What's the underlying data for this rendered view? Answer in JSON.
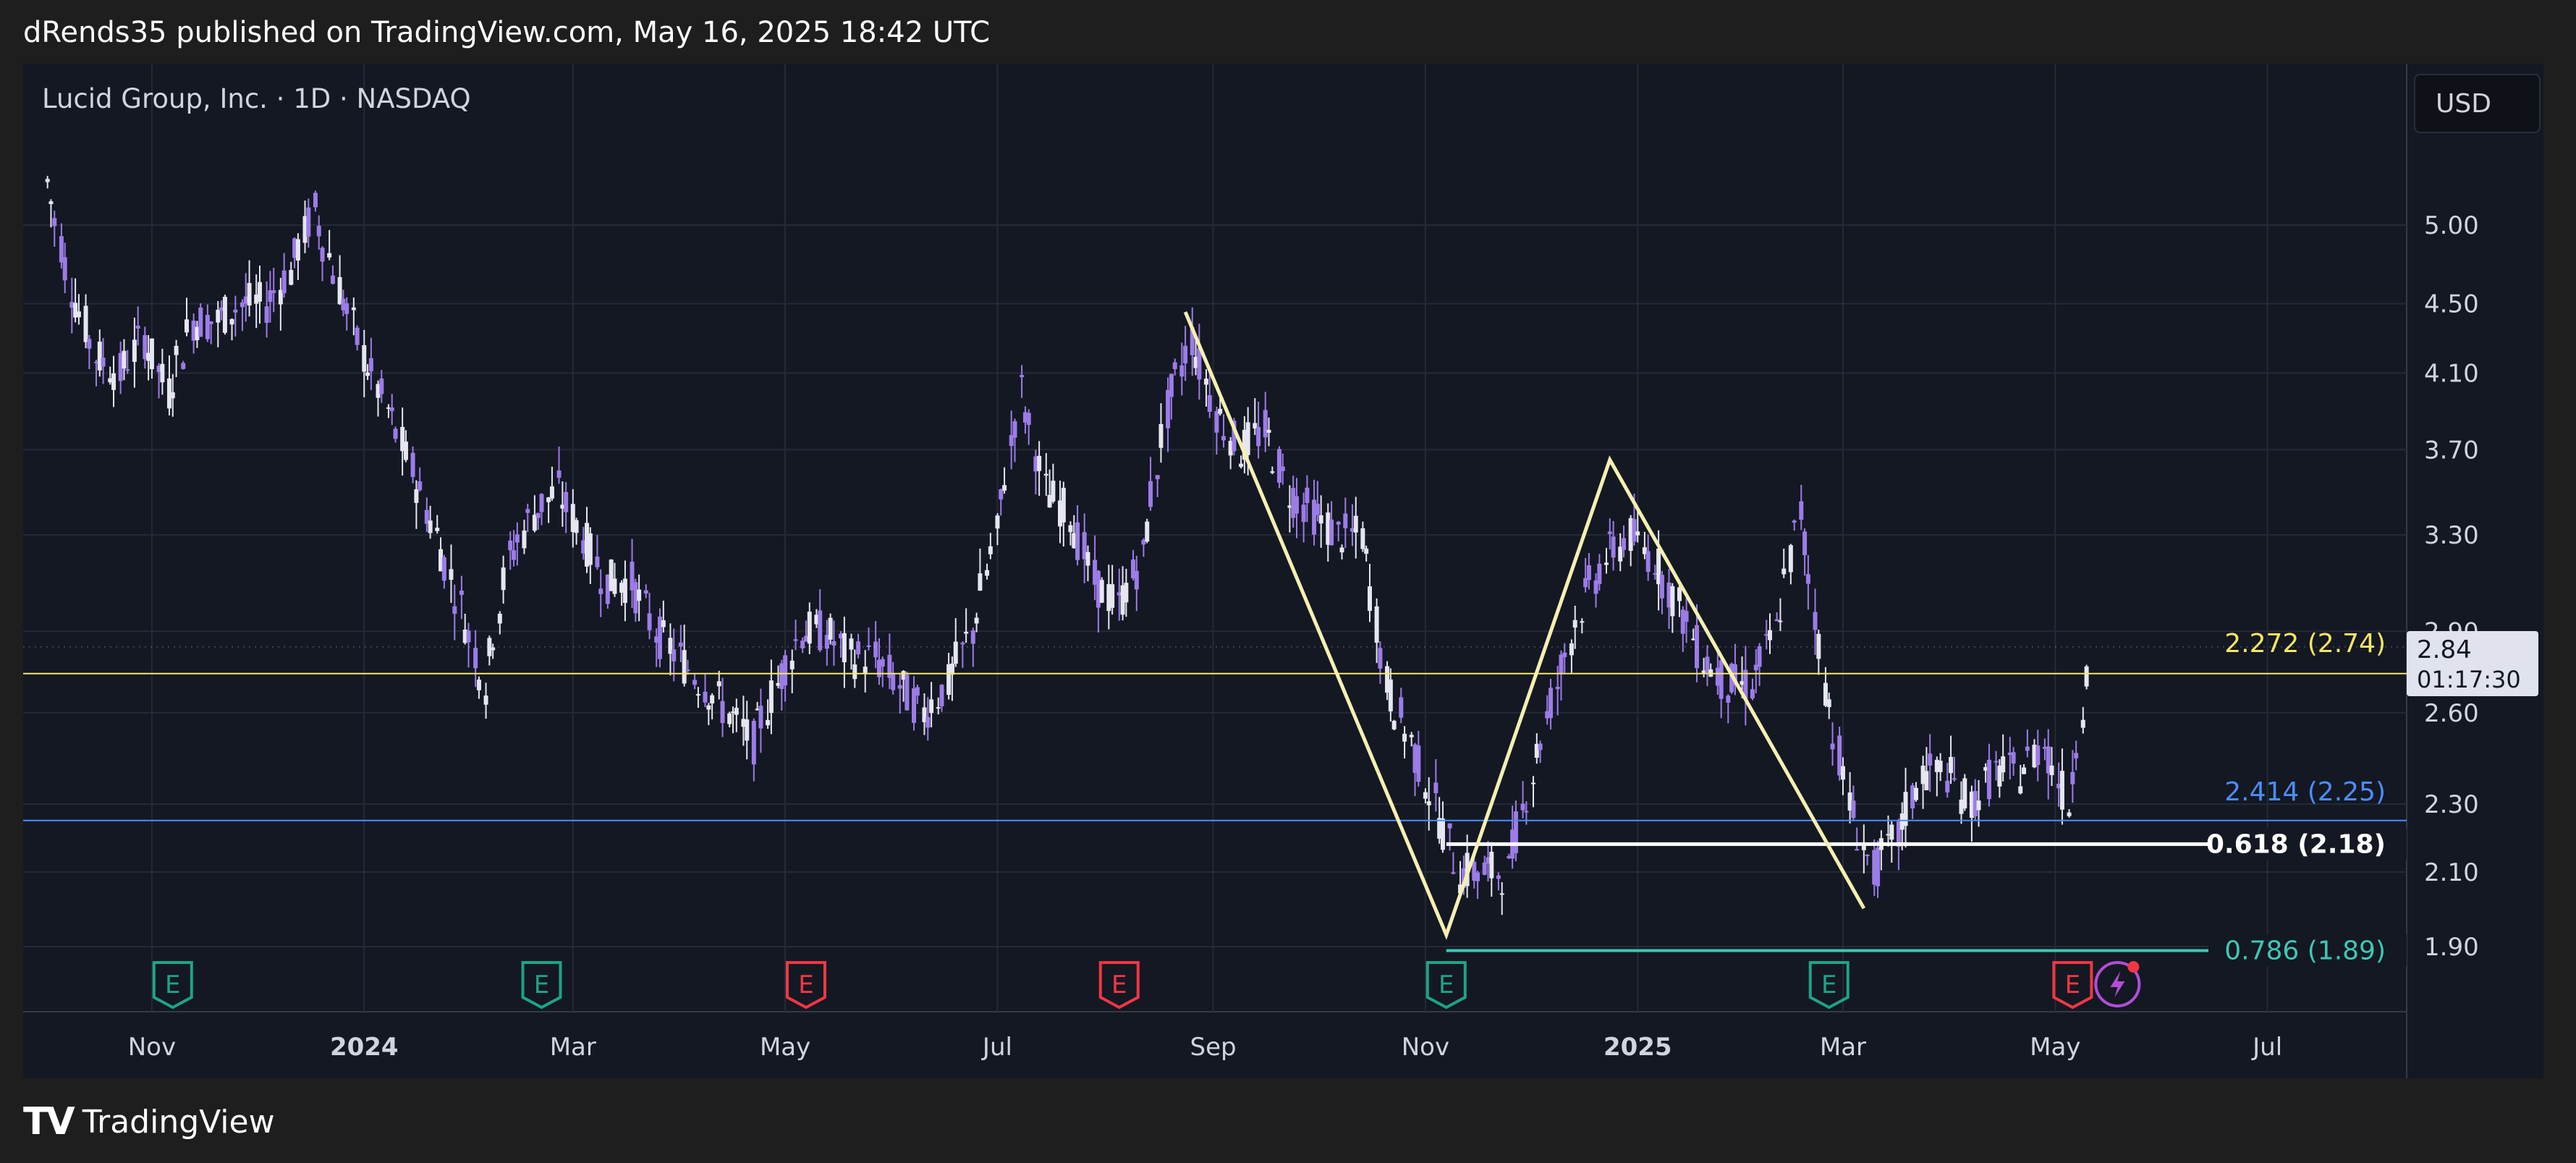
{
  "caption": "dRends35 published on TradingView.com, May 16, 2025 18:42 UTC",
  "symbol": "Lucid Group, Inc. · 1D · NASDAQ",
  "currency": "USD",
  "last_price": {
    "price": "2.84",
    "countdown": "01:17:30"
  },
  "footer_brand": "TradingView",
  "colors": {
    "background": "#141823",
    "candle": "#9c7ce8",
    "candle_up": "#e6e6f0",
    "pattern": "#f5f0b0",
    "fib_2272": "#f5e663",
    "fib_2414": "#4c8dff",
    "fib_0618": "#ffffff",
    "fib_0786": "#3fc7b4",
    "earnings_green": "#1ea388",
    "earnings_red": "#f23645"
  },
  "chart_data": {
    "type": "candlestick",
    "title": "Lucid Group, Inc. · 1D · NASDAQ",
    "scale": "log",
    "ylim": [
      1.8,
      6.0
    ],
    "y_ticks": [
      "5.00",
      "4.50",
      "4.10",
      "3.70",
      "3.30",
      "2.90",
      "2.60",
      "2.30",
      "2.10",
      "1.90"
    ],
    "x_ticks": [
      "Nov",
      "2024",
      "Mar",
      "May",
      "Jul",
      "Sep",
      "Nov",
      "2025",
      "Mar",
      "May",
      "Jul"
    ],
    "close_series": [
      [
        "2023-10-02",
        5.3
      ],
      [
        "2023-10-09",
        4.6
      ],
      [
        "2023-10-16",
        4.2
      ],
      [
        "2023-10-23",
        4.1
      ],
      [
        "2023-10-30",
        4.3
      ],
      [
        "2023-11-06",
        4.0
      ],
      [
        "2023-11-13",
        4.4
      ],
      [
        "2023-11-20",
        4.4
      ],
      [
        "2023-11-27",
        4.5
      ],
      [
        "2023-12-04",
        4.5
      ],
      [
        "2023-12-11",
        4.7
      ],
      [
        "2023-12-18",
        5.1
      ],
      [
        "2023-12-25",
        4.6
      ],
      [
        "2024-01-01",
        4.2
      ],
      [
        "2024-01-08",
        3.9
      ],
      [
        "2024-01-15",
        3.6
      ],
      [
        "2024-01-22",
        3.3
      ],
      [
        "2024-01-29",
        3.0
      ],
      [
        "2024-02-05",
        2.7
      ],
      [
        "2024-02-12",
        3.2
      ],
      [
        "2024-02-19",
        3.4
      ],
      [
        "2024-02-26",
        3.5
      ],
      [
        "2024-03-04",
        3.3
      ],
      [
        "2024-03-11",
        3.1
      ],
      [
        "2024-03-18",
        3.1
      ],
      [
        "2024-03-25",
        2.9
      ],
      [
        "2024-04-01",
        2.8
      ],
      [
        "2024-04-08",
        2.7
      ],
      [
        "2024-04-15",
        2.6
      ],
      [
        "2024-04-22",
        2.5
      ],
      [
        "2024-04-29",
        2.7
      ],
      [
        "2024-05-06",
        2.9
      ],
      [
        "2024-05-13",
        2.9
      ],
      [
        "2024-05-20",
        2.8
      ],
      [
        "2024-05-27",
        2.8
      ],
      [
        "2024-06-03",
        2.7
      ],
      [
        "2024-06-10",
        2.6
      ],
      [
        "2024-06-17",
        2.7
      ],
      [
        "2024-06-24",
        2.9
      ],
      [
        "2024-07-01",
        3.3
      ],
      [
        "2024-07-08",
        4.0
      ],
      [
        "2024-07-15",
        3.5
      ],
      [
        "2024-07-22",
        3.4
      ],
      [
        "2024-07-29",
        3.1
      ],
      [
        "2024-08-05",
        3.0
      ],
      [
        "2024-08-12",
        3.2
      ],
      [
        "2024-08-19",
        3.9
      ],
      [
        "2024-08-26",
        4.3
      ],
      [
        "2024-09-02",
        3.9
      ],
      [
        "2024-09-09",
        3.7
      ],
      [
        "2024-09-16",
        3.8
      ],
      [
        "2024-09-23",
        3.5
      ],
      [
        "2024-09-30",
        3.4
      ],
      [
        "2024-10-07",
        3.3
      ],
      [
        "2024-10-14",
        3.3
      ],
      [
        "2024-10-21",
        2.7
      ],
      [
        "2024-10-28",
        2.5
      ],
      [
        "2024-11-04",
        2.3
      ],
      [
        "2024-11-11",
        2.1
      ],
      [
        "2024-11-18",
        2.1
      ],
      [
        "2024-11-25",
        2.1
      ],
      [
        "2024-12-02",
        2.4
      ],
      [
        "2024-12-09",
        2.7
      ],
      [
        "2024-12-16",
        3.0
      ],
      [
        "2024-12-23",
        3.2
      ],
      [
        "2024-12-30",
        3.3
      ],
      [
        "2025-01-06",
        3.2
      ],
      [
        "2025-01-13",
        3.0
      ],
      [
        "2025-01-20",
        2.8
      ],
      [
        "2025-01-27",
        2.7
      ],
      [
        "2025-02-03",
        2.7
      ],
      [
        "2025-02-10",
        2.9
      ],
      [
        "2025-02-17",
        3.4
      ],
      [
        "2025-02-24",
        2.7
      ],
      [
        "2025-03-03",
        2.3
      ],
      [
        "2025-03-10",
        2.1
      ],
      [
        "2025-03-17",
        2.2
      ],
      [
        "2025-03-24",
        2.4
      ],
      [
        "2025-03-31",
        2.4
      ],
      [
        "2025-04-07",
        2.3
      ],
      [
        "2025-04-14",
        2.4
      ],
      [
        "2025-04-21",
        2.4
      ],
      [
        "2025-04-28",
        2.5
      ],
      [
        "2025-05-05",
        2.3
      ],
      [
        "2025-05-12",
        2.84
      ]
    ],
    "horizontal_lines": [
      {
        "label": "2.272 (2.74)",
        "value": 2.74,
        "color": "#f5e663"
      },
      {
        "label": "2.414 (2.25)",
        "value": 2.25,
        "color": "#4c8dff"
      },
      {
        "label": "0.618 (2.18)",
        "value": 2.18,
        "color": "#ffffff"
      },
      {
        "label": "0.786 (1.89)",
        "value": 1.89,
        "color": "#3fc7b4"
      }
    ],
    "pattern_polyline": [
      [
        "2024-08-24",
        4.45
      ],
      [
        "2024-11-07",
        1.93
      ],
      [
        "2024-12-24",
        3.65
      ],
      [
        "2025-03-07",
        2.0
      ]
    ],
    "earnings_markers": [
      {
        "date": "2023-11-07",
        "label": "E",
        "color": "green"
      },
      {
        "date": "2024-02-21",
        "label": "E",
        "color": "green"
      },
      {
        "date": "2024-05-07",
        "label": "E",
        "color": "red"
      },
      {
        "date": "2024-08-05",
        "label": "E",
        "color": "red"
      },
      {
        "date": "2024-11-07",
        "label": "E",
        "color": "green"
      },
      {
        "date": "2025-02-25",
        "label": "E",
        "color": "green"
      },
      {
        "date": "2025-05-06",
        "label": "E",
        "color": "red"
      }
    ],
    "grid": true
  }
}
